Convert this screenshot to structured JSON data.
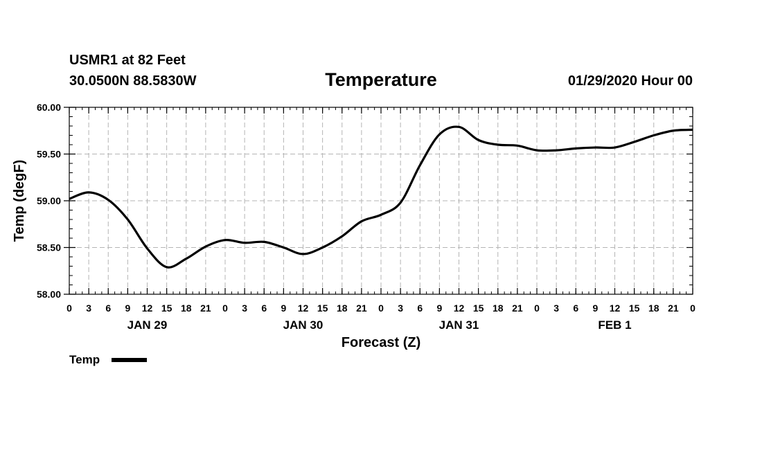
{
  "header": {
    "station": "USMR1 at 82 Feet",
    "coords": "30.0500N 88.5830W",
    "datetime": "01/29/2020 Hour 00"
  },
  "colors": {
    "line": "#000000",
    "grid": "#b4b4b4",
    "axis": "#000000"
  },
  "chart_data": {
    "type": "line",
    "title": "Temperature",
    "xlabel": "Forecast (Z)",
    "ylabel": "Temp (degF)",
    "xlim": [
      0,
      96
    ],
    "ylim": [
      58.0,
      60.0
    ],
    "yticks": [
      "58.00",
      "58.50",
      "59.00",
      "59.50",
      "60.00"
    ],
    "ytick_values": [
      58.0,
      58.5,
      59.0,
      59.5,
      60.0
    ],
    "xtick_labels": [
      "0",
      "3",
      "6",
      "9",
      "12",
      "15",
      "18",
      "21",
      "0",
      "3",
      "6",
      "9",
      "12",
      "15",
      "18",
      "21",
      "0",
      "3",
      "6",
      "9",
      "12",
      "15",
      "18",
      "21",
      "0",
      "3",
      "6",
      "9",
      "12",
      "15",
      "18",
      "21",
      "0"
    ],
    "day_labels": [
      {
        "label": "JAN 29",
        "hour": 12
      },
      {
        "label": "JAN 30",
        "hour": 36
      },
      {
        "label": "JAN 31",
        "hour": 60
      },
      {
        "label": "FEB 1",
        "hour": 84
      }
    ],
    "legend": "Temp",
    "series": [
      {
        "name": "Temp",
        "x": [
          0,
          3,
          6,
          9,
          12,
          15,
          18,
          21,
          24,
          27,
          30,
          33,
          36,
          39,
          42,
          45,
          48,
          51,
          54,
          57,
          60,
          63,
          66,
          69,
          72,
          75,
          78,
          81,
          84,
          87,
          90,
          93,
          96
        ],
        "values": [
          59.02,
          59.09,
          59.01,
          58.8,
          58.49,
          58.29,
          58.38,
          58.51,
          58.58,
          58.55,
          58.56,
          58.5,
          58.43,
          58.5,
          58.62,
          58.78,
          58.85,
          58.98,
          59.38,
          59.71,
          59.79,
          59.65,
          59.6,
          59.59,
          59.54,
          59.54,
          59.56,
          59.57,
          59.57,
          59.63,
          59.7,
          59.75,
          59.76
        ]
      }
    ]
  }
}
